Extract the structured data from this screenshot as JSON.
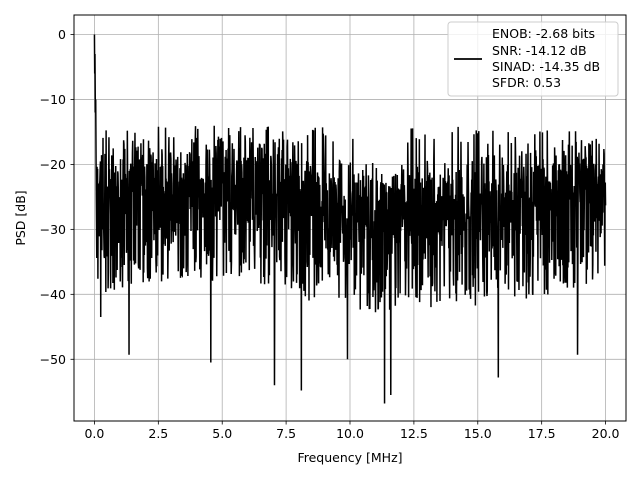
{
  "chart_data": {
    "type": "line",
    "xlabel": "Frequency [MHz]",
    "ylabel": "PSD [dB]",
    "xlim": [
      -0.8,
      20.8
    ],
    "ylim": [
      -59.5,
      3
    ],
    "x_ticks": [
      0.0,
      2.5,
      5.0,
      7.5,
      10.0,
      12.5,
      15.0,
      17.5,
      20.0
    ],
    "x_tick_labels": [
      "0.0",
      "2.5",
      "5.0",
      "7.5",
      "10.0",
      "12.5",
      "15.0",
      "17.5",
      "20.0"
    ],
    "y_ticks": [
      0,
      -10,
      -20,
      -30,
      -40,
      -50
    ],
    "y_tick_labels": [
      "0",
      "−10",
      "−20",
      "−30",
      "−40",
      "−50"
    ],
    "grid": true,
    "legend_position": "top-right",
    "series": [
      {
        "color": "#000000",
        "legend_lines": [
          "ENOB: -2.68 bits",
          "SNR: -14.12 dB",
          "SINAD: -14.35 dB",
          "SFDR: 0.53"
        ],
        "x_range": [
          0,
          20
        ],
        "typical_band_db": [
          -34,
          -18
        ],
        "peak_db": 0,
        "max_db": -13.5,
        "min_db": -57,
        "deep_dips": [
          {
            "x": 0.25,
            "y": -43.5
          },
          {
            "x": 1.35,
            "y": -49.3
          },
          {
            "x": 4.55,
            "y": -50.5
          },
          {
            "x": 7.05,
            "y": -54.0
          },
          {
            "x": 8.1,
            "y": -54.8
          },
          {
            "x": 9.9,
            "y": -50.0
          },
          {
            "x": 11.35,
            "y": -56.8
          },
          {
            "x": 11.6,
            "y": -55.5
          },
          {
            "x": 15.8,
            "y": -52.8
          },
          {
            "x": 18.9,
            "y": -49.3
          }
        ]
      }
    ]
  }
}
